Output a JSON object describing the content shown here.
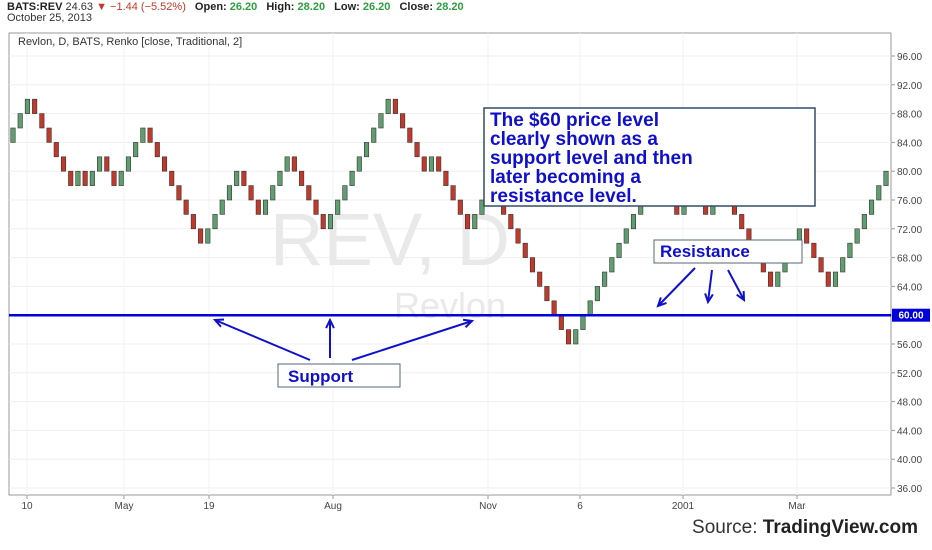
{
  "header": {
    "symbol": "BATS:REV",
    "last": "24.63",
    "change": "▼ −1.44 (−5.52%)",
    "open_label": "Open:",
    "open": "26.20",
    "high_label": "High:",
    "high": "28.20",
    "low_label": "Low:",
    "low": "26.20",
    "close_label": "Close:",
    "close": "28.20",
    "date": "October 25, 2013"
  },
  "chart_data": {
    "type": "renko",
    "title": "Revlon, D, BATS, Renko [close, Traditional, 2]",
    "watermark_symbol": "REV, D",
    "watermark_name": "Revlon",
    "box_size": 2,
    "y_ticks": [
      "96.00",
      "92.00",
      "88.00",
      "84.00",
      "80.00",
      "76.00",
      "72.00",
      "68.00",
      "64.00",
      "60.00",
      "56.00",
      "52.00",
      "48.00",
      "44.00",
      "40.00",
      "36.00"
    ],
    "ylim": [
      35,
      98
    ],
    "x_ticks": [
      "10",
      "May",
      "19",
      "Aug",
      "Nov",
      "6",
      "2001",
      "Mar"
    ],
    "level": 60,
    "level_label": "60.00",
    "bricks": [
      {
        "d": "up",
        "n": 3
      },
      {
        "d": "down",
        "n": 6
      },
      {
        "d": "up",
        "n": 1
      },
      {
        "d": "down",
        "n": 1
      },
      {
        "d": "up",
        "n": 2
      },
      {
        "d": "down",
        "n": 2
      },
      {
        "d": "up",
        "n": 4
      },
      {
        "d": "down",
        "n": 8
      },
      {
        "d": "up",
        "n": 5
      },
      {
        "d": "down",
        "n": 3
      },
      {
        "d": "up",
        "n": 4
      },
      {
        "d": "down",
        "n": 5
      },
      {
        "d": "up",
        "n": 9
      },
      {
        "d": "down",
        "n": 5
      },
      {
        "d": "up",
        "n": 1
      },
      {
        "d": "down",
        "n": 5
      },
      {
        "d": "up",
        "n": 3
      },
      {
        "d": "down",
        "n": 11
      },
      {
        "d": "up",
        "n": 12
      },
      {
        "d": "down",
        "n": 3
      },
      {
        "d": "up",
        "n": 2
      },
      {
        "d": "down",
        "n": 2
      },
      {
        "d": "up",
        "n": 2
      },
      {
        "d": "down",
        "n": 7
      },
      {
        "d": "up",
        "n": 4
      },
      {
        "d": "down",
        "n": 4
      },
      {
        "d": "up",
        "n": 8
      }
    ],
    "annotations": {
      "textbox": "The $60 price level clearly shown as a support level and then later becoming a resistance level.",
      "support": "Support",
      "resistance": "Resistance"
    },
    "colors": {
      "up": "#5f9e6e",
      "down": "#c0392b",
      "level": "#0000dd",
      "annotation": "#1010cc"
    }
  },
  "footer": {
    "source_label": "Source:",
    "source_name": "TradingView.com"
  }
}
